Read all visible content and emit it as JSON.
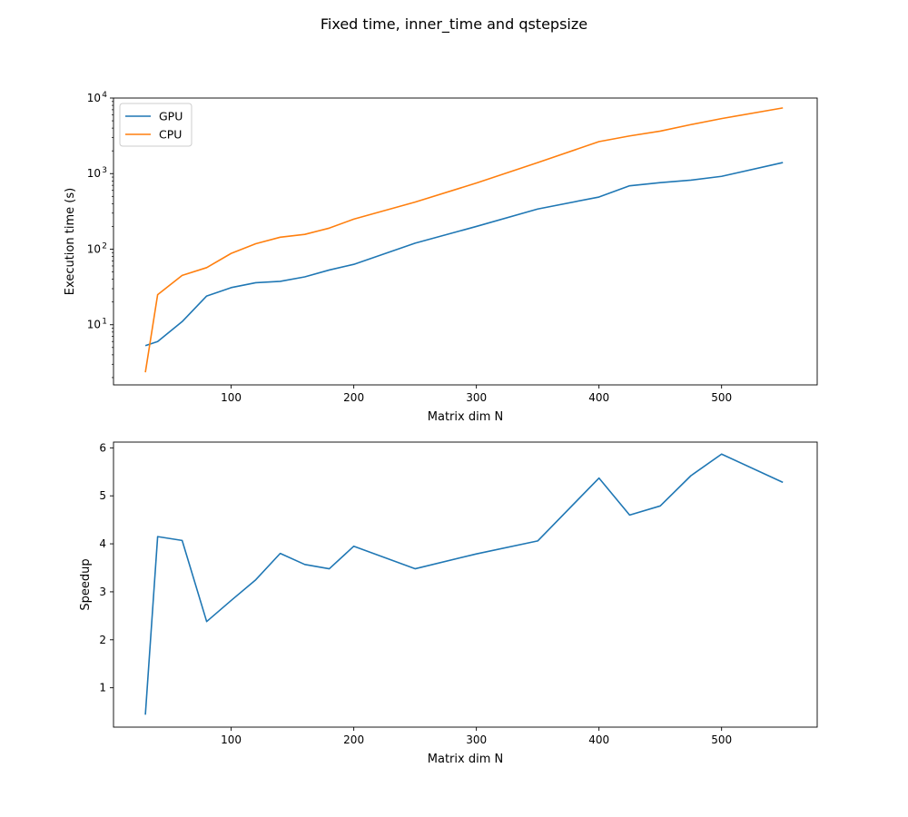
{
  "figure": {
    "title": "Fixed time, inner_time and qstepsize"
  },
  "chart_data": [
    {
      "type": "line",
      "xlabel": "Matrix dim N",
      "ylabel": "Execution time (s)",
      "yscale": "log",
      "xlim": [
        4,
        578
      ],
      "ylim": [
        1.6,
        10000
      ],
      "xticks": [
        100,
        200,
        300,
        400,
        500
      ],
      "xtick_labels": [
        "100",
        "200",
        "300",
        "400",
        "500"
      ],
      "yticks": [
        10,
        100,
        1000,
        10000
      ],
      "ytick_labels": [
        {
          "base": "10",
          "exp": "1"
        },
        {
          "base": "10",
          "exp": "2"
        },
        {
          "base": "10",
          "exp": "3"
        },
        {
          "base": "10",
          "exp": "4"
        }
      ],
      "grid": false,
      "legend_position": "top-left",
      "x": [
        30,
        40,
        60,
        80,
        100,
        120,
        140,
        160,
        180,
        200,
        250,
        300,
        350,
        400,
        425,
        450,
        475,
        500,
        550
      ],
      "series": [
        {
          "name": "GPU",
          "color": "#1f77b4",
          "values": [
            5.3,
            6.0,
            11.0,
            24.0,
            31.0,
            36.0,
            37.5,
            43.0,
            53.0,
            63.0,
            120.0,
            200.0,
            340.0,
            490.0,
            690.0,
            760.0,
            820.0,
            920.0,
            1400.0
          ]
        },
        {
          "name": "CPU",
          "color": "#ff7f0e",
          "values": [
            2.35,
            25.0,
            45.0,
            57.0,
            88.0,
            118.0,
            144.0,
            157.0,
            190.0,
            250.0,
            420.0,
            750.0,
            1400.0,
            2650.0,
            3150.0,
            3650.0,
            4450.0,
            5350.0,
            7400.0
          ]
        }
      ]
    },
    {
      "type": "line",
      "xlabel": "Matrix dim N",
      "ylabel": "Speedup",
      "xlim": [
        4,
        578
      ],
      "ylim": [
        0.18,
        6.12
      ],
      "xticks": [
        100,
        200,
        300,
        400,
        500
      ],
      "xtick_labels": [
        "100",
        "200",
        "300",
        "400",
        "500"
      ],
      "yticks": [
        1,
        2,
        3,
        4,
        5,
        6
      ],
      "ytick_labels": [
        "1",
        "2",
        "3",
        "4",
        "5",
        "6"
      ],
      "grid": false,
      "x": [
        30,
        40,
        60,
        80,
        100,
        120,
        140,
        160,
        180,
        200,
        250,
        300,
        350,
        400,
        425,
        450,
        475,
        500,
        550
      ],
      "series": [
        {
          "color": "#1f77b4",
          "values": [
            0.44,
            4.15,
            4.07,
            2.38,
            2.82,
            3.25,
            3.8,
            3.57,
            3.48,
            3.95,
            3.48,
            3.79,
            4.06,
            5.37,
            4.6,
            4.79,
            5.42,
            5.87,
            5.28
          ]
        }
      ]
    }
  ]
}
